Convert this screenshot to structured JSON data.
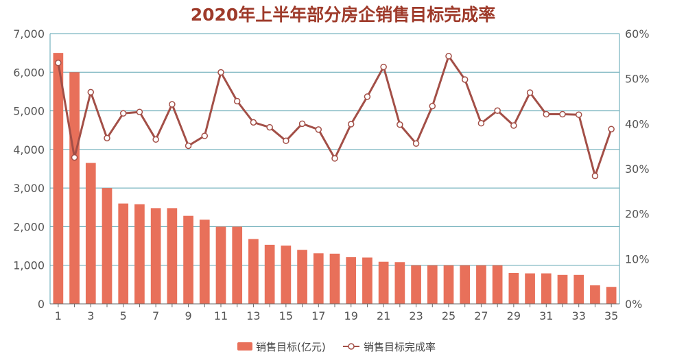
{
  "chart_data": {
    "type": "bar",
    "title": "2020年上半年部分房企销售目标完成率",
    "xlabel": "",
    "ylabel": "",
    "categories": [
      1,
      2,
      3,
      4,
      5,
      6,
      7,
      8,
      9,
      10,
      11,
      12,
      13,
      14,
      15,
      16,
      17,
      18,
      19,
      20,
      21,
      22,
      23,
      24,
      25,
      26,
      27,
      28,
      29,
      30,
      31,
      32,
      33,
      34,
      35
    ],
    "x_tick_labels": [
      "1",
      "3",
      "5",
      "7",
      "9",
      "11",
      "13",
      "15",
      "17",
      "19",
      "21",
      "23",
      "25",
      "27",
      "29",
      "31",
      "33",
      "35"
    ],
    "y_left": {
      "ylim": [
        0,
        7000
      ],
      "ticks": [
        "0",
        "1,000",
        "2,000",
        "3,000",
        "4,000",
        "5,000",
        "6,000",
        "7,000"
      ]
    },
    "y_right": {
      "ylim": [
        0,
        60
      ],
      "ticks": [
        "0%",
        "10%",
        "20%",
        "30%",
        "40%",
        "50%",
        "60%"
      ]
    },
    "grid": true,
    "legend_position": "bottom",
    "series": [
      {
        "name": "销售目标(亿元)",
        "type": "bar",
        "axis": "left",
        "color": "#e8705a",
        "values": [
          6500,
          6000,
          3650,
          3000,
          2600,
          2580,
          2480,
          2480,
          2280,
          2180,
          2000,
          2000,
          1680,
          1530,
          1510,
          1400,
          1310,
          1300,
          1210,
          1200,
          1090,
          1080,
          1000,
          1000,
          1000,
          1000,
          1000,
          1000,
          800,
          790,
          790,
          750,
          750,
          480,
          440
        ]
      },
      {
        "name": "销售目标完成率",
        "type": "line",
        "axis": "right",
        "color": "#a34f47",
        "values": [
          53.5,
          32.5,
          47,
          36.8,
          42.3,
          42.6,
          36.5,
          44.3,
          35.1,
          37.3,
          51.4,
          45,
          40.3,
          39.2,
          36.2,
          40,
          38.7,
          32.3,
          39.9,
          46,
          52.6,
          39.8,
          35.6,
          43.9,
          55,
          49.8,
          40.1,
          42.9,
          39.6,
          46.9,
          42.1,
          42.1,
          42,
          28.4,
          38.8
        ]
      }
    ]
  }
}
